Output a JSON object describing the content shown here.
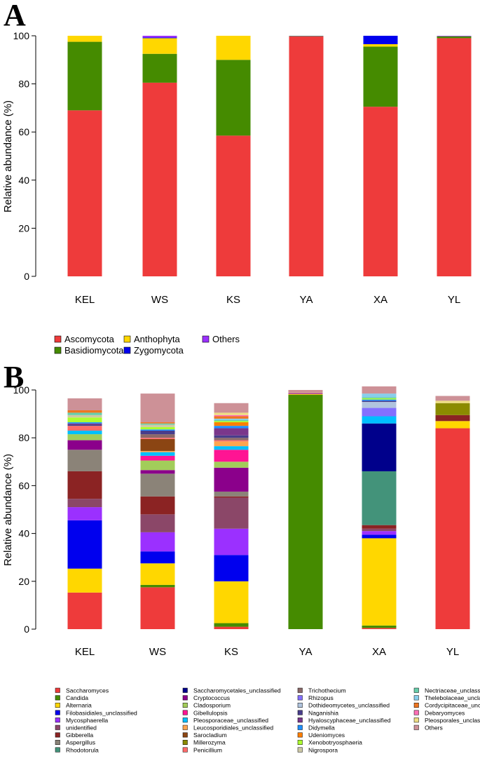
{
  "chart_data": [
    {
      "panel": "A",
      "type": "bar",
      "stacked": true,
      "title": "",
      "xlabel": "",
      "ylabel": "Relative abundance (%)",
      "ylim": [
        0,
        100
      ],
      "yticks": [
        "0",
        "20",
        "40",
        "60",
        "80",
        "100"
      ],
      "categories": [
        "KEL",
        "WS",
        "KS",
        "YA",
        "XA",
        "YL"
      ],
      "legend_position": "bottom",
      "series": [
        {
          "name": "Ascomycota",
          "color": "#ee3b3b",
          "values": [
            69,
            80.5,
            58.5,
            99.7,
            70.5,
            99
          ]
        },
        {
          "name": "Basidiomycota",
          "color": "#458b00",
          "values": [
            28.5,
            12,
            31.5,
            0.2,
            25,
            0.8
          ]
        },
        {
          "name": "Anthophyta",
          "color": "#ffd700",
          "values": [
            2.5,
            6.5,
            10,
            0,
            1,
            0
          ]
        },
        {
          "name": "Zygomycota",
          "color": "#0000ee",
          "values": [
            0,
            0.3,
            0,
            0,
            3.5,
            0
          ]
        },
        {
          "name": "Others",
          "color": "#9b30ff",
          "values": [
            0,
            0.7,
            0,
            0.1,
            0,
            0.2
          ]
        }
      ]
    },
    {
      "panel": "B",
      "type": "bar",
      "stacked": true,
      "title": "",
      "xlabel": "",
      "ylabel": "Relative abundance (%)",
      "ylim": [
        0,
        100
      ],
      "yticks": [
        "0",
        "20",
        "40",
        "60",
        "80",
        "100"
      ],
      "categories": [
        "KEL",
        "WS",
        "KS",
        "YA",
        "XA",
        "YL"
      ],
      "legend_position": "bottom",
      "legend_columns": 4,
      "series": [
        {
          "name": "Saccharomyces",
          "color": "#ee3b3b",
          "values": [
            15.3,
            17.5,
            1,
            0,
            0.5,
            84
          ]
        },
        {
          "name": "Candida",
          "color": "#458b00",
          "values": [
            0,
            1,
            1.5,
            98,
            1,
            0
          ]
        },
        {
          "name": "Alternaria",
          "color": "#ffd700",
          "values": [
            10,
            9,
            17.5,
            0.3,
            36.5,
            3
          ]
        },
        {
          "name": "Filobasidiales_unclassified",
          "color": "#0000ee",
          "values": [
            20.2,
            5,
            11,
            0,
            1.5,
            0
          ]
        },
        {
          "name": "Mycosphaerella",
          "color": "#9b30ff",
          "values": [
            5.5,
            8,
            11,
            0,
            1.5,
            0
          ]
        },
        {
          "name": "unidentified",
          "color": "#8b4768",
          "values": [
            3.5,
            7.5,
            13,
            0,
            1,
            0
          ]
        },
        {
          "name": "Gibberella",
          "color": "#8b2323",
          "values": [
            11.5,
            7.5,
            0.5,
            0,
            1.5,
            2.5
          ]
        },
        {
          "name": "Aspergillus",
          "color": "#8b8378",
          "values": [
            9,
            9.5,
            2,
            0,
            0,
            0
          ]
        },
        {
          "name": "Rhodotorula",
          "color": "#43937a",
          "values": [
            0,
            0,
            0,
            0,
            22.5,
            0
          ]
        },
        {
          "name": "Saccharomycetales_unclassified",
          "color": "#00008b",
          "values": [
            0,
            0,
            0,
            0,
            20,
            0
          ]
        },
        {
          "name": "Cryptococcus",
          "color": "#8b008b",
          "values": [
            4,
            1.5,
            10,
            0.3,
            0,
            0
          ]
        },
        {
          "name": "Cladosporium",
          "color": "#a2cd5a",
          "values": [
            2.5,
            4,
            2.5,
            0,
            0,
            0
          ]
        },
        {
          "name": "Gibellulopsis",
          "color": "#ff1493",
          "values": [
            0,
            2,
            5,
            0,
            0,
            0
          ]
        },
        {
          "name": "Pleosporaceae_unclassified",
          "color": "#00bfff",
          "values": [
            1.5,
            1.5,
            1.5,
            0,
            3,
            0
          ]
        },
        {
          "name": "Leucosporidiales_unclassified",
          "color": "#ffa54f",
          "values": [
            0,
            0.5,
            2,
            0,
            0,
            0
          ]
        },
        {
          "name": "Sarocladium",
          "color": "#8b4513",
          "values": [
            0,
            5,
            0,
            0,
            0,
            0
          ]
        },
        {
          "name": "Millerozyma",
          "color": "#8b8b00",
          "values": [
            0,
            0,
            0,
            0,
            0,
            5
          ]
        },
        {
          "name": "Penicillium",
          "color": "#ff6a6a",
          "values": [
            2,
            0.5,
            0.5,
            0,
            0,
            0
          ]
        },
        {
          "name": "Trichothecium",
          "color": "#8b6969",
          "values": [
            0,
            1.5,
            1,
            0,
            0,
            0
          ]
        },
        {
          "name": "Rhizopus",
          "color": "#8470ff",
          "values": [
            0,
            0,
            0,
            0,
            3.5,
            0
          ]
        },
        {
          "name": "Dothideomycetes_unclassified",
          "color": "#b0c4de",
          "values": [
            0,
            0,
            0,
            0,
            2.5,
            0
          ]
        },
        {
          "name": "Naganishia",
          "color": "#483d8b",
          "values": [
            0.5,
            1.5,
            1,
            0,
            0.5,
            0
          ]
        },
        {
          "name": "Hyaloscyphaceae_unclassified",
          "color": "#7a378b",
          "values": [
            0.5,
            0,
            3,
            0,
            0,
            0
          ]
        },
        {
          "name": "Didymella",
          "color": "#1e90ff",
          "values": [
            0.5,
            0.5,
            1,
            0,
            0.5,
            0
          ]
        },
        {
          "name": "Udeniomyces",
          "color": "#ff7f00",
          "values": [
            0,
            0,
            1.5,
            0,
            0,
            0
          ]
        },
        {
          "name": "Xenobotryosphaeria",
          "color": "#adff2f",
          "values": [
            2,
            1,
            0.5,
            0,
            0.5,
            0
          ]
        },
        {
          "name": "Nigrospora",
          "color": "#cdc9a5",
          "values": [
            1,
            1,
            0,
            0,
            0,
            0
          ]
        },
        {
          "name": "Nectriaceae_unclassified",
          "color": "#66cdaa",
          "values": [
            1,
            0.5,
            0.5,
            0,
            0.5,
            0
          ]
        },
        {
          "name": "Thelebolaceae_unclassified",
          "color": "#87ceeb",
          "values": [
            0,
            0,
            0.5,
            0,
            1.5,
            0
          ]
        },
        {
          "name": "Cordycipitaceae_unclassified",
          "color": "#ee7621",
          "values": [
            1,
            0.5,
            1,
            0,
            0,
            0
          ]
        },
        {
          "name": "Debaryomyces",
          "color": "#ff6eb4",
          "values": [
            0,
            0,
            0.5,
            0,
            0,
            0
          ]
        },
        {
          "name": "Pleosporales_unclassified",
          "color": "#eedd82",
          "values": [
            0,
            0,
            1,
            0,
            0,
            1
          ]
        },
        {
          "name": "Others",
          "color": "#cd9197",
          "values": [
            5,
            12,
            4,
            1.4,
            3,
            2
          ]
        }
      ]
    }
  ]
}
